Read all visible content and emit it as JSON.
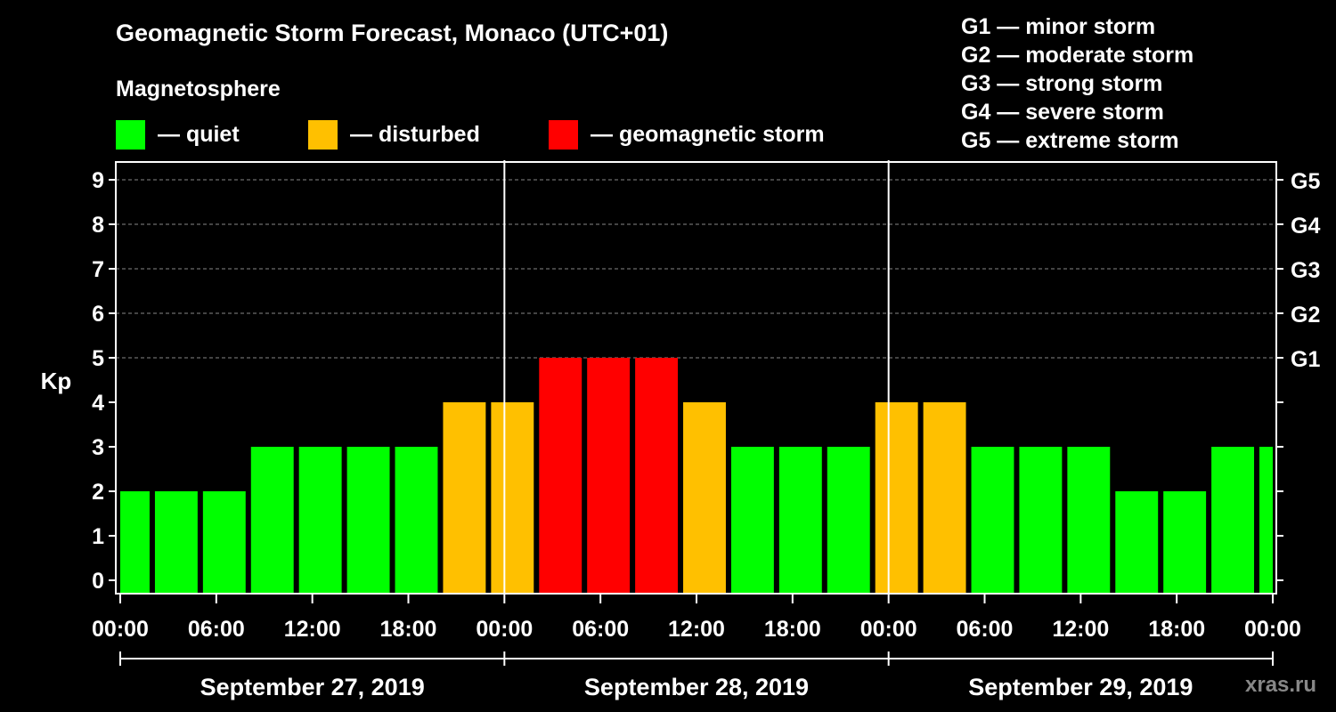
{
  "chart_data": {
    "type": "bar",
    "title": "Geomagnetic Storm Forecast, Monaco (UTC+01)",
    "subtitle": "Magnetosphere",
    "ylabel": "Kp",
    "ylim": [
      0,
      9
    ],
    "y_ticks": [
      "0",
      "1",
      "2",
      "3",
      "4",
      "5",
      "6",
      "7",
      "8",
      "9"
    ],
    "right_ticks": [
      "G1",
      "G2",
      "G3",
      "G4",
      "G5"
    ],
    "x_ticks": [
      "00:00",
      "06:00",
      "12:00",
      "18:00",
      "00:00",
      "06:00",
      "12:00",
      "18:00",
      "00:00",
      "06:00",
      "12:00",
      "18:00",
      "00:00"
    ],
    "days": [
      "September 27, 2019",
      "September 28, 2019",
      "September 29, 2019"
    ],
    "x_range_hours": [
      0,
      72
    ],
    "bar_interval_hours": 3,
    "bar_start_hours": -1,
    "values": [
      2,
      2,
      2,
      3,
      3,
      3,
      3,
      4,
      4,
      5,
      5,
      5,
      4,
      3,
      3,
      3,
      4,
      4,
      3,
      3,
      3,
      2,
      2,
      3,
      3
    ],
    "levels": [
      "quiet",
      "quiet",
      "quiet",
      "quiet",
      "quiet",
      "quiet",
      "quiet",
      "disturbed",
      "disturbed",
      "storm",
      "storm",
      "storm",
      "disturbed",
      "quiet",
      "quiet",
      "quiet",
      "disturbed",
      "disturbed",
      "quiet",
      "quiet",
      "quiet",
      "quiet",
      "quiet",
      "quiet",
      "quiet"
    ]
  },
  "colors": {
    "quiet": "#00ff00",
    "disturbed": "#ffc000",
    "storm": "#ff0000",
    "grid": "#888888"
  },
  "legend": [
    {
      "label": "— quiet",
      "level": "quiet"
    },
    {
      "label": "— disturbed",
      "level": "disturbed"
    },
    {
      "label": "— geomagnetic storm",
      "level": "storm"
    }
  ],
  "g_levels": [
    "G1 — minor storm",
    "G2 — moderate storm",
    "G3 — strong storm",
    "G4 — severe storm",
    "G5 — extreme storm"
  ],
  "watermark": "xras.ru"
}
